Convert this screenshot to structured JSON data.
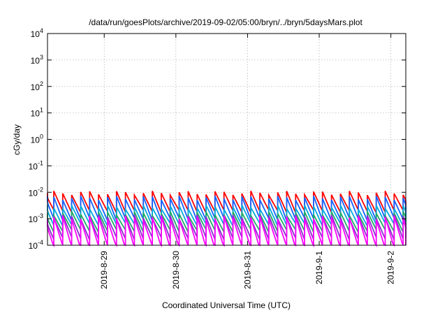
{
  "chart_data": {
    "type": "line",
    "title": "/data/run/goesPlots/archive/2019-09-02/05:00/bryn/../bryn/5daysMars.plot",
    "xlabel": "Coordinated Universal Time (UTC)",
    "ylabel": "cGy/day",
    "x_start": "2019-08-28 05:00",
    "x_end": "2019-09-02 05:00",
    "x_ticks": [
      {
        "date": "2019-08-29 00:00",
        "label": "2019-8-29"
      },
      {
        "date": "2019-08-30 00:00",
        "label": "2019-8-30"
      },
      {
        "date": "2019-08-31 00:00",
        "label": "2019-8-31"
      },
      {
        "date": "2019-09-01 00:00",
        "label": "2019-9-1"
      },
      {
        "date": "2019-09-02 00:00",
        "label": "2019-9-2"
      }
    ],
    "y_scale": "log",
    "ylim": [
      0.0001,
      10000
    ],
    "y_ticks": [
      {
        "value": 0.0001,
        "base": "10",
        "exp": "-4"
      },
      {
        "value": 0.001,
        "base": "10",
        "exp": "-3"
      },
      {
        "value": 0.01,
        "base": "10",
        "exp": "-2"
      },
      {
        "value": 0.1,
        "base": "10",
        "exp": "-1"
      },
      {
        "value": 1,
        "base": "10",
        "exp": "0"
      },
      {
        "value": 10,
        "base": "10",
        "exp": "1"
      },
      {
        "value": 100,
        "base": "10",
        "exp": "2"
      },
      {
        "value": 1000,
        "base": "10",
        "exp": "3"
      },
      {
        "value": 10000,
        "base": "10",
        "exp": "4"
      }
    ],
    "grid": true,
    "sawtooth_period_hours": 3,
    "series": [
      {
        "color": "#ff0000",
        "peak": 0.0095,
        "trough": 0.0019
      },
      {
        "color": "#1560ff",
        "peak": 0.0062,
        "trough": 0.00095
      },
      {
        "color": "#00aadd",
        "peak": 0.0028,
        "trough": 0.0006
      },
      {
        "color": "#22aa66",
        "peak": 0.0016,
        "trough": 0.00035
      },
      {
        "color": "#8833cc",
        "peak": 0.0012,
        "trough": 0.00018
      },
      {
        "color": "#ff00ff",
        "peak": 0.0011,
        "trough": 8.5e-05
      }
    ]
  }
}
